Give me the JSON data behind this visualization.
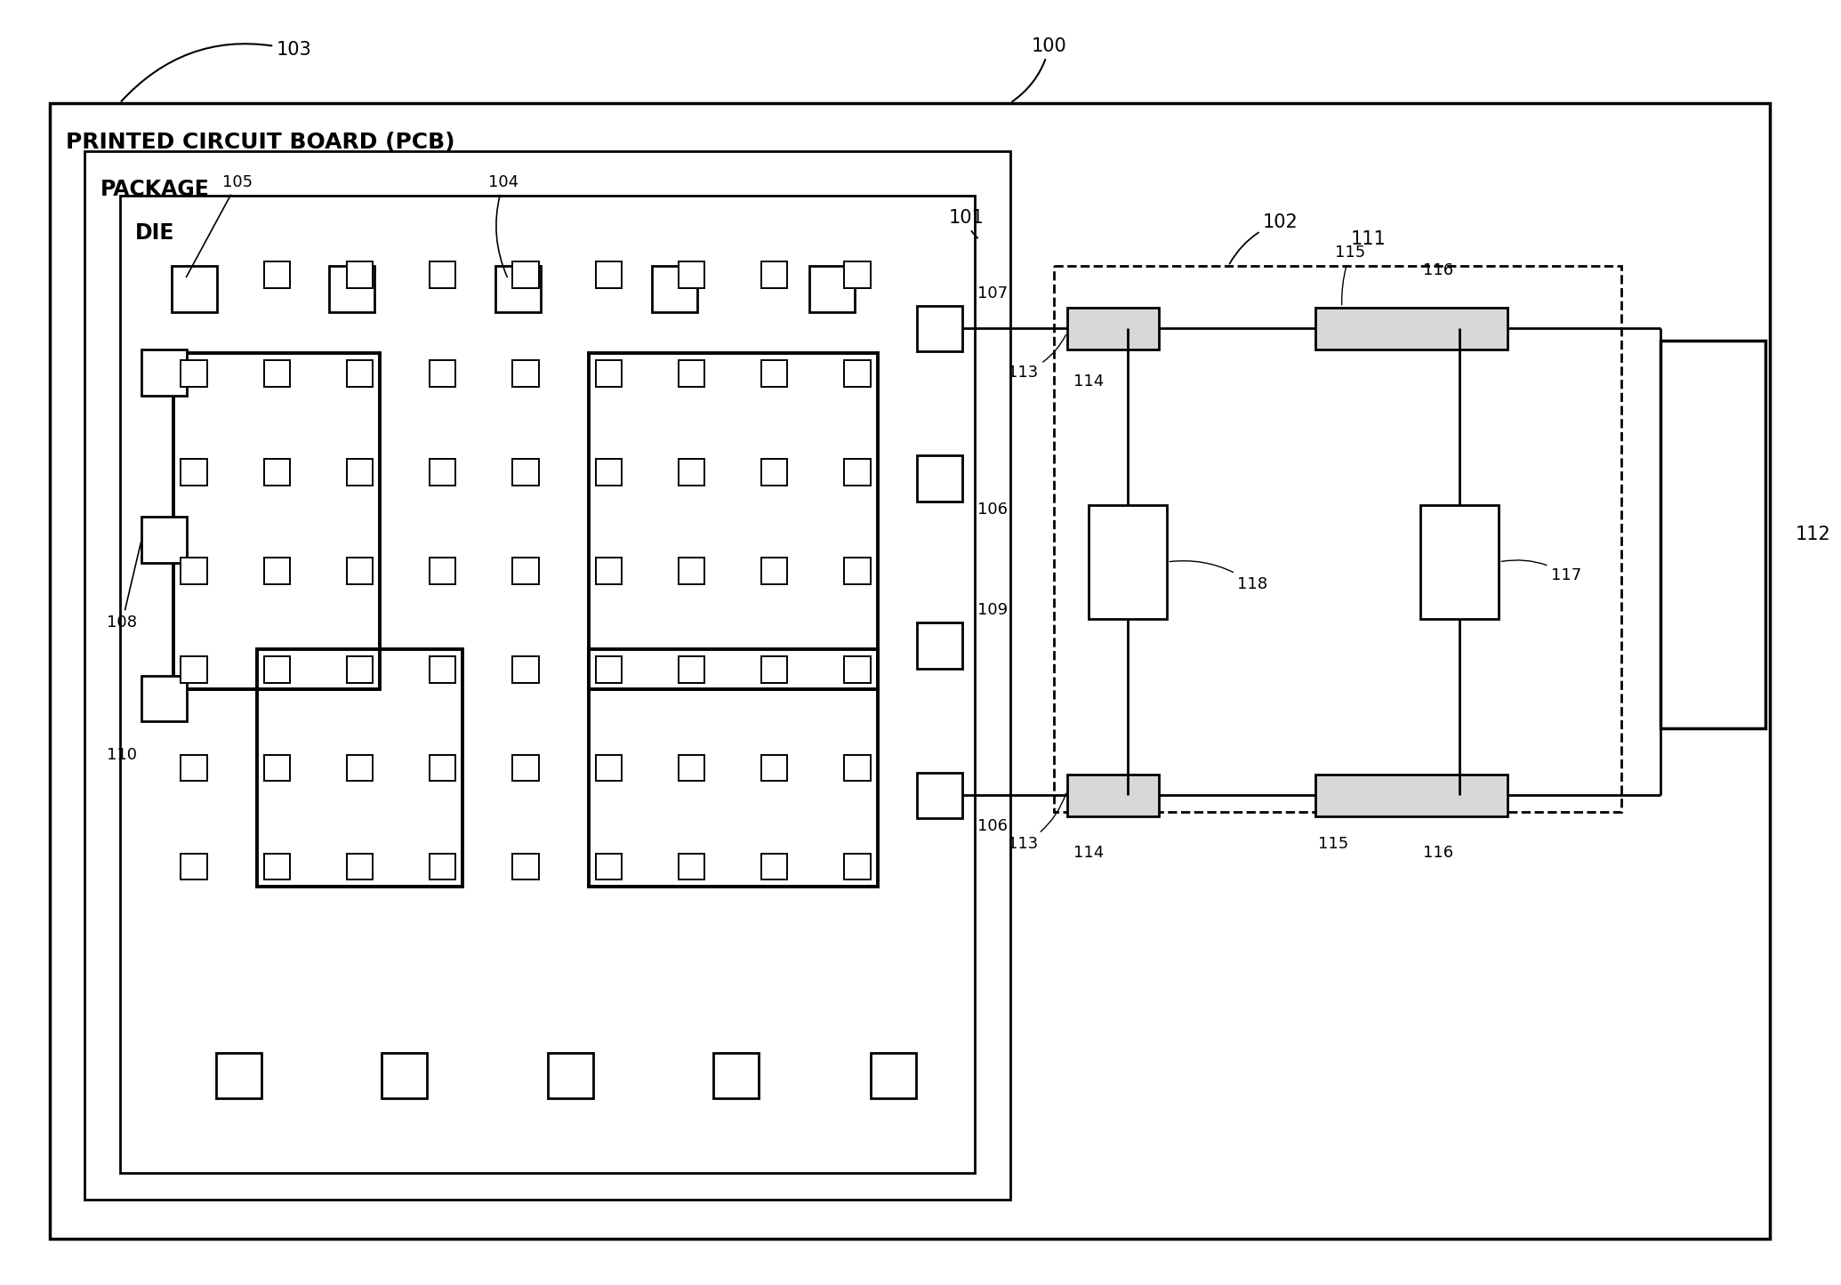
{
  "bg_color": "#ffffff",
  "lc": "#000000",
  "fig_w": 20.7,
  "fig_h": 14.45,
  "pcb_label": "PRINTED CIRCUIT BOARD (PCB)",
  "package_label": "PACKAGE",
  "die_label": "DIE"
}
